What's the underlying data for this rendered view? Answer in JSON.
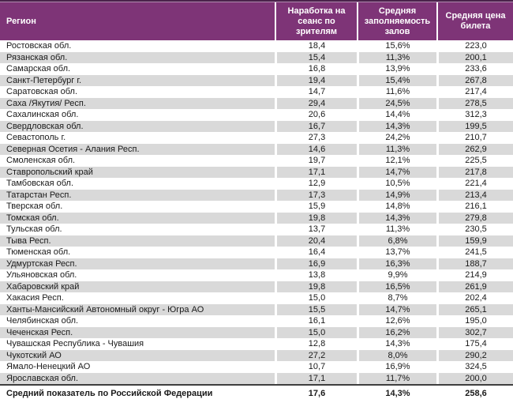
{
  "chart_data": {
    "type": "table",
    "columns": [
      "Регион",
      "Наработка на сеанс по зрителям",
      "Средняя заполняемость залов",
      "Средняя цена билета"
    ],
    "rows": [
      {
        "region": "Ростовская обл.",
        "sessions": "18,4",
        "occupancy": "15,6%",
        "price": "223,0"
      },
      {
        "region": "Рязанская обл.",
        "sessions": "15,4",
        "occupancy": "11,3%",
        "price": "200,1"
      },
      {
        "region": "Самарская обл.",
        "sessions": "16,8",
        "occupancy": "13,9%",
        "price": "233,6"
      },
      {
        "region": "Санкт-Петербург г.",
        "sessions": "19,4",
        "occupancy": "15,4%",
        "price": "267,8"
      },
      {
        "region": "Саратовская обл.",
        "sessions": "14,7",
        "occupancy": "11,6%",
        "price": "217,4"
      },
      {
        "region": "Саха /Якутия/ Респ.",
        "sessions": "29,4",
        "occupancy": "24,5%",
        "price": "278,5"
      },
      {
        "region": "Сахалинская обл.",
        "sessions": "20,6",
        "occupancy": "14,4%",
        "price": "312,3"
      },
      {
        "region": "Свердловская обл.",
        "sessions": "16,7",
        "occupancy": "14,3%",
        "price": "199,5"
      },
      {
        "region": "Севастополь г.",
        "sessions": "27,3",
        "occupancy": "24,2%",
        "price": "210,7"
      },
      {
        "region": "Северная Осетия - Алания Респ.",
        "sessions": "14,6",
        "occupancy": "11,3%",
        "price": "262,9"
      },
      {
        "region": "Смоленская обл.",
        "sessions": "19,7",
        "occupancy": "12,1%",
        "price": "225,5"
      },
      {
        "region": "Ставропольский край",
        "sessions": "17,1",
        "occupancy": "14,7%",
        "price": "217,8"
      },
      {
        "region": "Тамбовская обл.",
        "sessions": "12,9",
        "occupancy": "10,5%",
        "price": "221,4"
      },
      {
        "region": "Татарстан Респ.",
        "sessions": "17,3",
        "occupancy": "14,9%",
        "price": "213,4"
      },
      {
        "region": "Тверская обл.",
        "sessions": "15,9",
        "occupancy": "14,8%",
        "price": "216,1"
      },
      {
        "region": "Томская обл.",
        "sessions": "19,8",
        "occupancy": "14,3%",
        "price": "279,8"
      },
      {
        "region": "Тульская обл.",
        "sessions": "13,7",
        "occupancy": "11,3%",
        "price": "230,5"
      },
      {
        "region": "Тыва Респ.",
        "sessions": "20,4",
        "occupancy": "6,8%",
        "price": "159,9"
      },
      {
        "region": "Тюменская обл.",
        "sessions": "16,4",
        "occupancy": "13,7%",
        "price": "241,5"
      },
      {
        "region": "Удмуртская Респ.",
        "sessions": "16,9",
        "occupancy": "16,3%",
        "price": "188,7"
      },
      {
        "region": "Ульяновская обл.",
        "sessions": "13,8",
        "occupancy": "9,9%",
        "price": "214,9"
      },
      {
        "region": "Хабаровский край",
        "sessions": "19,8",
        "occupancy": "16,5%",
        "price": "261,9"
      },
      {
        "region": "Хакасия Респ.",
        "sessions": "15,0",
        "occupancy": "8,7%",
        "price": "202,4"
      },
      {
        "region": "Ханты-Мансийский Автономный округ - Югра АО",
        "sessions": "15,5",
        "occupancy": "14,7%",
        "price": "265,1"
      },
      {
        "region": "Челябинская обл.",
        "sessions": "16,1",
        "occupancy": "12,6%",
        "price": "195,0"
      },
      {
        "region": "Чеченская Респ.",
        "sessions": "15,0",
        "occupancy": "16,2%",
        "price": "302,7"
      },
      {
        "region": "Чувашская Республика - Чувашия",
        "sessions": "12,8",
        "occupancy": "14,3%",
        "price": "175,4"
      },
      {
        "region": "Чукотский АО",
        "sessions": "27,2",
        "occupancy": "8,0%",
        "price": "290,2"
      },
      {
        "region": "Ямало-Ненецкий АО",
        "sessions": "10,7",
        "occupancy": "16,9%",
        "price": "324,5"
      },
      {
        "region": "Ярославская обл.",
        "sessions": "17,1",
        "occupancy": "11,7%",
        "price": "200,0"
      }
    ],
    "footer": {
      "region": "Средний показатель по Российской Федерации",
      "sessions": "17,6",
      "occupancy": "14,3%",
      "price": "258,6"
    }
  },
  "colors": {
    "header_bg": "#7E3477",
    "header_text": "#FFFFFF",
    "header_top_border": "#4A234A",
    "header_top_highlight": "#B08AB0",
    "row_alt_bg": "#D9D9D9",
    "row_text": "#1A1A1A",
    "footer_top_border": "#3F3F3F"
  }
}
